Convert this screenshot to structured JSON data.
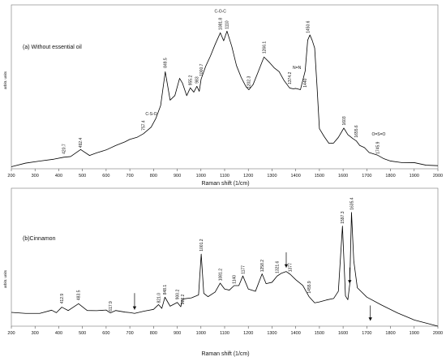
{
  "chart_data": [
    {
      "type": "line",
      "panel_label": "(a) Without essential oil",
      "xlabel": "Raman shift (1/cm)",
      "ylabel": "arbitr. units",
      "xlim": [
        200,
        2000
      ],
      "x_ticks": [
        "200",
        "300",
        "400",
        "500",
        "600",
        "700",
        "800",
        "900",
        "1000",
        "1100",
        "1200",
        "1300",
        "1400",
        "1500",
        "1600",
        "1700",
        "1800",
        "1900",
        "2000"
      ],
      "grid": false,
      "series": [
        {
          "x": [
            200,
            260,
            320,
            380,
            420.7,
            450,
            492.4,
            530,
            560,
            600,
            640,
            680,
            700,
            730,
            757.4,
            790,
            810,
            830,
            849.5,
            870,
            890,
            910,
            922,
            940,
            955.2,
            970,
            983,
            993,
            1000.7,
            1020,
            1040,
            1060,
            1081.8,
            1096,
            1110,
            1130,
            1150,
            1170,
            1190,
            1202.3,
            1220,
            1240,
            1266.1,
            1290,
            1310,
            1330,
            1350,
            1374.2,
            1390,
            1400,
            1420,
            1440,
            1450.6,
            1460,
            1470,
            1480,
            1490,
            1500,
            1520,
            1540,
            1560,
            1580,
            1603,
            1620,
            1640,
            1655.6,
            1670,
            1690,
            1710,
            1745.9,
            1770,
            1800,
            1850,
            1900,
            1950,
            2000
          ],
          "y": [
            2,
            5,
            8,
            10,
            12,
            13,
            18,
            13,
            15,
            18,
            22,
            26,
            28,
            31,
            35,
            42,
            48,
            62,
            96,
            66,
            72,
            88,
            84,
            70,
            79,
            75,
            81,
            77,
            88,
            100,
            110,
            122,
            133,
            125,
            134,
            120,
            100,
            90,
            80,
            76,
            82,
            94,
            110,
            104,
            98,
            95,
            86,
            80,
            77,
            79,
            77,
            96,
            125,
            130,
            126,
            118,
            80,
            40,
            30,
            26,
            25,
            30,
            40,
            33,
            30,
            28,
            24,
            20,
            16,
            12,
            10,
            8,
            6,
            5,
            4,
            3
          ]
        }
      ],
      "labels": [
        {
          "text": "420.7",
          "x": 420.7,
          "y": 12
        },
        {
          "text": "492.4",
          "x": 492.4,
          "y": 18
        },
        {
          "text": "757.4",
          "x": 757.4,
          "y": 35
        },
        {
          "text": "C-S-O",
          "x": 790,
          "y": 50,
          "horizontal": true
        },
        {
          "text": "849.5",
          "x": 849.5,
          "y": 96
        },
        {
          "text": "955.2",
          "x": 955.2,
          "y": 79
        },
        {
          "text": "983",
          "x": 983,
          "y": 81
        },
        {
          "text": "1000.7",
          "x": 1000.7,
          "y": 88
        },
        {
          "text": "C-O-C",
          "x": 1081.8,
          "y": 150,
          "horizontal": true
        },
        {
          "text": "1081.8",
          "x": 1081.8,
          "y": 133
        },
        {
          "text": "1110",
          "x": 1110,
          "y": 134
        },
        {
          "text": "1202.3",
          "x": 1202.3,
          "y": 76
        },
        {
          "text": "1266.1",
          "x": 1266.1,
          "y": 110
        },
        {
          "text": "1374.2",
          "x": 1374.2,
          "y": 80
        },
        {
          "text": "N=N",
          "x": 1405,
          "y": 95,
          "horizontal": true
        },
        {
          "text": "1440",
          "x": 1440,
          "y": 77
        },
        {
          "text": "1450.6",
          "x": 1450.6,
          "y": 130
        },
        {
          "text": "1603",
          "x": 1603,
          "y": 40
        },
        {
          "text": "1655.6",
          "x": 1655.6,
          "y": 28
        },
        {
          "text": "O=S=O",
          "x": 1750,
          "y": 30,
          "horizontal": true
        },
        {
          "text": "1745.9",
          "x": 1745.9,
          "y": 12
        }
      ]
    },
    {
      "type": "line",
      "panel_label": "(b)Cinnamon",
      "xlabel": "Raman shift (1/cm)",
      "ylabel": "arbitr. units",
      "xlim": [
        200,
        2000
      ],
      "x_ticks": [
        "200",
        "300",
        "400",
        "500",
        "600",
        "700",
        "800",
        "900",
        "1000",
        "1100",
        "1200",
        "1300",
        "1400",
        "1500",
        "1600",
        "1700",
        "1800",
        "1900",
        "2000"
      ],
      "grid": false,
      "series": [
        {
          "x": [
            200,
            260,
            320,
            370,
            390,
            412.9,
            440,
            483.5,
            520,
            560,
            600,
            617.9,
            640,
            680,
            700,
            720,
            760,
            800,
            821,
            835,
            848.1,
            870,
            900.2,
            915,
            922.2,
            960,
            990,
            1001.2,
            1012,
            1030,
            1060,
            1081.2,
            1100,
            1120,
            1140,
            1160,
            1177,
            1200,
            1230,
            1258.2,
            1275,
            1300,
            1321.6,
            1340,
            1360,
            1377,
            1400,
            1430,
            1455.9,
            1480,
            1500,
            1530,
            1560,
            1580,
            1597.3,
            1610,
            1620,
            1628,
            1635.4,
            1645,
            1660,
            1700,
            1760,
            1830,
            1900,
            2000
          ],
          "y": [
            20,
            18,
            19,
            22,
            20,
            29,
            22,
            34,
            24,
            22,
            23,
            18,
            22,
            20,
            19,
            20,
            22,
            24,
            30,
            26,
            42,
            28,
            35,
            28,
            40,
            42,
            46,
            105,
            48,
            44,
            50,
            62,
            55,
            52,
            58,
            60,
            72,
            54,
            52,
            75,
            62,
            65,
            73,
            77,
            80,
            75,
            68,
            60,
            44,
            34,
            36,
            38,
            40,
            50,
            145,
            45,
            38,
            60,
            165,
            95,
            55,
            42,
            30,
            18,
            8,
            0
          ]
        }
      ],
      "labels": [
        {
          "text": "412.9",
          "x": 412.9,
          "y": 29
        },
        {
          "text": "483.5",
          "x": 483.5,
          "y": 34
        },
        {
          "text": "617.9",
          "x": 617.9,
          "y": 18
        },
        {
          "text": "821.0",
          "x": 821,
          "y": 30
        },
        {
          "text": "848.1",
          "x": 848.1,
          "y": 42
        },
        {
          "text": "900.2",
          "x": 900.2,
          "y": 35
        },
        {
          "text": "922.2",
          "x": 922.2,
          "y": 28
        },
        {
          "text": "1001.2",
          "x": 1001.2,
          "y": 105
        },
        {
          "text": "1081.2",
          "x": 1081.2,
          "y": 62
        },
        {
          "text": "1140",
          "x": 1140,
          "y": 58
        },
        {
          "text": "1177",
          "x": 1177,
          "y": 72
        },
        {
          "text": "1258.2",
          "x": 1258.2,
          "y": 75
        },
        {
          "text": "1321.6",
          "x": 1321.6,
          "y": 73
        },
        {
          "text": "1377",
          "x": 1377,
          "y": 75
        },
        {
          "text": "1455.9",
          "x": 1455.9,
          "y": 44
        },
        {
          "text": "1597.3",
          "x": 1597.3,
          "y": 145
        },
        {
          "text": "1635.4",
          "x": 1635.4,
          "y": 165
        }
      ],
      "arrows": [
        {
          "x": 720,
          "y_from": 48,
          "y_to": 24
        },
        {
          "x": 1360,
          "y_from": 107,
          "y_to": 85
        },
        {
          "x": 1628,
          "y_from": 85,
          "y_to": 62
        },
        {
          "x": 1715,
          "y_from": 30,
          "y_to": 8
        }
      ]
    }
  ]
}
